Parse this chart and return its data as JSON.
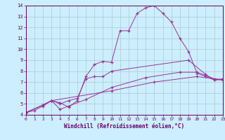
{
  "xlabel": "Windchill (Refroidissement éolien,°C)",
  "xlim": [
    0,
    23
  ],
  "ylim": [
    4,
    14
  ],
  "yticks": [
    4,
    5,
    6,
    7,
    8,
    9,
    10,
    11,
    12,
    13,
    14
  ],
  "xticks": [
    0,
    1,
    2,
    3,
    4,
    5,
    6,
    7,
    8,
    9,
    10,
    11,
    12,
    13,
    14,
    15,
    16,
    17,
    18,
    19,
    20,
    21,
    22,
    23
  ],
  "background_color": "#cceeff",
  "grid_color": "#aacccc",
  "line_color": "#993399",
  "lines": [
    [
      0,
      4.2,
      1,
      4.4,
      2,
      4.8,
      3,
      5.3,
      4,
      5.1,
      5,
      4.7,
      6,
      5.3,
      7,
      7.5,
      8,
      8.6,
      9,
      8.9,
      10,
      8.8,
      11,
      11.7,
      12,
      11.7,
      13,
      13.3,
      14,
      13.8,
      15,
      14.0,
      16,
      13.3,
      17,
      12.5,
      18,
      11.0,
      19,
      9.8,
      20,
      7.8,
      21,
      7.5,
      22,
      7.2,
      23,
      7.3
    ],
    [
      0,
      4.2,
      2,
      4.9,
      3,
      5.3,
      4,
      5.0,
      5,
      5.3,
      6,
      5.5,
      7,
      7.3,
      8,
      7.5,
      9,
      7.5,
      10,
      8.0,
      19,
      9.0,
      21,
      7.7,
      22,
      7.2,
      23,
      7.2
    ],
    [
      0,
      4.2,
      2,
      4.9,
      3,
      5.3,
      4,
      4.5,
      5,
      4.8,
      7,
      5.4,
      10,
      6.5,
      14,
      7.4,
      18,
      7.9,
      20,
      7.9,
      22,
      7.3,
      23,
      7.2
    ],
    [
      0,
      4.2,
      2,
      4.9,
      3,
      5.3,
      10,
      6.2,
      15,
      7.0,
      20,
      7.5,
      23,
      7.2
    ]
  ]
}
